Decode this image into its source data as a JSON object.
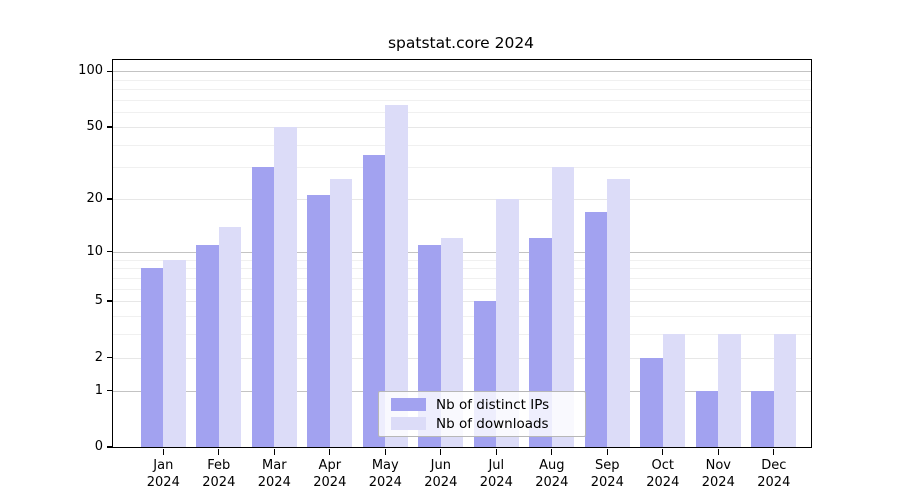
{
  "title": "spatstat.core 2024",
  "chart_data": {
    "type": "bar",
    "title": "spatstat.core 2024",
    "xlabel": "",
    "ylabel": "",
    "scale": "log10(value+1)",
    "grid": true,
    "legend_position": "bottom-center-inside",
    "y_ticks": [
      0,
      1,
      2,
      5,
      10,
      20,
      50,
      100
    ],
    "y_minor_gridlines": [
      3,
      4,
      6,
      7,
      8,
      9,
      30,
      40,
      60,
      70,
      80,
      90
    ],
    "y_mid_gridlines": [
      2,
      5,
      20,
      50
    ],
    "y_major_gridlines": [
      1,
      10,
      100
    ],
    "ylim": [
      0,
      115
    ],
    "categories": [
      "Jan",
      "Feb",
      "Mar",
      "Apr",
      "May",
      "Jun",
      "Jul",
      "Aug",
      "Sep",
      "Oct",
      "Nov",
      "Dec"
    ],
    "category_year": "2024",
    "series": [
      {
        "name": "Nb of distinct IPs",
        "color": "#a2a2f0",
        "values": [
          8,
          11,
          30,
          21,
          35,
          11,
          5,
          12,
          17,
          2,
          1,
          1
        ]
      },
      {
        "name": "Nb of downloads",
        "color": "#dcdcf8",
        "values": [
          9,
          14,
          50,
          26,
          66,
          12,
          20,
          30,
          26,
          3,
          3,
          3
        ]
      }
    ]
  },
  "legend": {
    "items": [
      {
        "label": "Nb of distinct IPs",
        "color": "#a2a2f0"
      },
      {
        "label": "Nb of downloads",
        "color": "#dcdcf8"
      }
    ]
  },
  "colors": {
    "background": "#ffffff",
    "axis": "#000000",
    "grid_major": "#c3c3c3",
    "grid_mid": "#e7e7e7",
    "grid_minor": "#f0f0f0",
    "legend_border": "#b7b7b7"
  }
}
